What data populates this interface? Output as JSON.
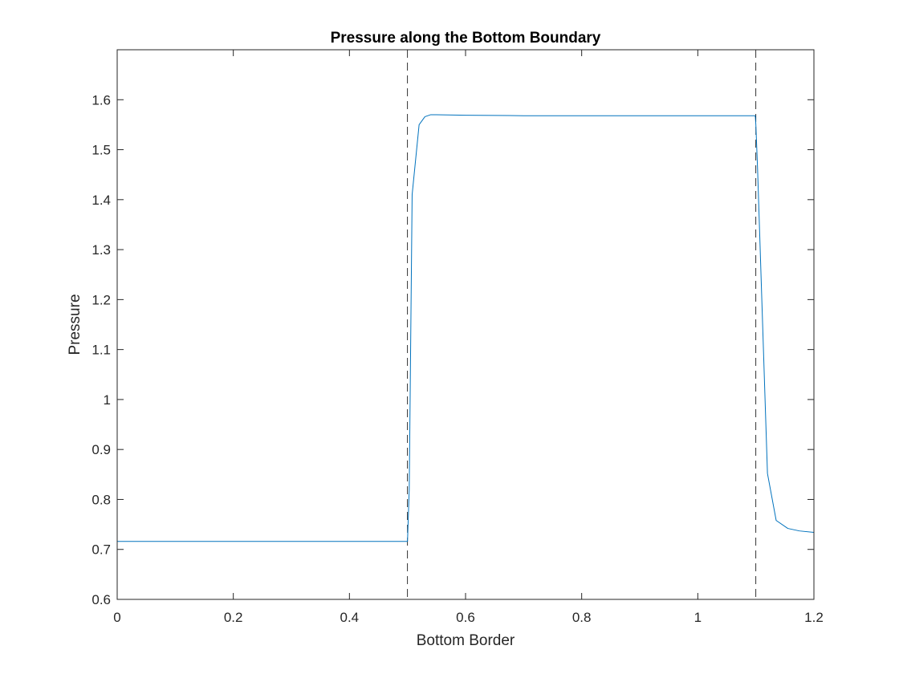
{
  "chart_data": {
    "type": "line",
    "title": "Pressure along the Bottom Boundary",
    "xlabel": "Bottom Border",
    "ylabel": "Pressure",
    "xlim": [
      0,
      1.2
    ],
    "ylim": [
      0.6,
      1.7
    ],
    "xticks": [
      0,
      0.2,
      0.4,
      0.6,
      0.8,
      1,
      1.2
    ],
    "xtick_labels": [
      "0",
      "0.2",
      "0.4",
      "0.6",
      "0.8",
      "1",
      "1.2"
    ],
    "yticks": [
      0.6,
      0.7,
      0.8,
      0.9,
      1.0,
      1.1,
      1.2,
      1.3,
      1.4,
      1.5,
      1.6
    ],
    "ytick_labels": [
      "0.6",
      "0.7",
      "0.8",
      "0.9",
      "1",
      "1.1",
      "1.2",
      "1.3",
      "1.4",
      "1.5",
      "1.6"
    ],
    "grid": false,
    "line_color": "#0072bd",
    "reference_line_color": "#000000",
    "vertical_reference_lines": [
      0.5,
      1.1
    ],
    "series": [
      {
        "x": [
          0,
          0.1,
          0.2,
          0.3,
          0.4,
          0.49,
          0.5,
          0.503,
          0.508,
          0.52,
          0.53,
          0.54,
          0.55,
          0.6,
          0.7,
          0.8,
          0.9,
          1.0,
          1.05,
          1.099,
          1.1,
          1.103,
          1.12,
          1.135,
          1.155,
          1.175,
          1.2
        ],
        "y": [
          0.716,
          0.716,
          0.716,
          0.716,
          0.716,
          0.716,
          0.716,
          0.82,
          1.41,
          1.55,
          1.566,
          1.57,
          1.57,
          1.569,
          1.568,
          1.568,
          1.568,
          1.568,
          1.568,
          1.568,
          1.55,
          1.46,
          0.852,
          0.758,
          0.742,
          0.737,
          0.734
        ]
      }
    ]
  }
}
